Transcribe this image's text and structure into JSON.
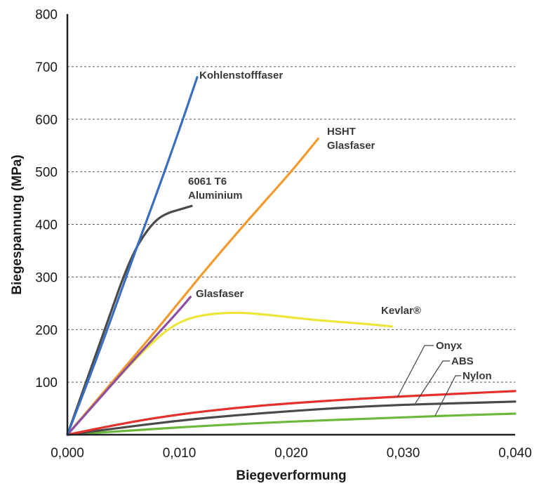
{
  "chart_data": {
    "type": "line",
    "xlabel": "Biegeverformung",
    "ylabel": "Biegespannung (MPa)",
    "xlim": [
      0,
      0.04
    ],
    "ylim": [
      0,
      800
    ],
    "x_ticks": [
      "0,000",
      "0,010",
      "0,020",
      "0,030",
      "0,040"
    ],
    "y_ticks": [
      "100",
      "200",
      "300",
      "400",
      "500",
      "600",
      "700",
      "800"
    ],
    "grid": "horizontal dashed",
    "series": [
      {
        "name": "Kohlenstofffaser",
        "color": "#3a6fbd",
        "x": [
          0,
          0.002,
          0.004,
          0.006,
          0.008,
          0.01,
          0.0116
        ],
        "y": [
          0,
          110,
          225,
          345,
          460,
          580,
          680
        ]
      },
      {
        "name": "HSHT Glasfaser",
        "color": "#f29a2e",
        "x": [
          0,
          0.004,
          0.008,
          0.012,
          0.016,
          0.02,
          0.0224
        ],
        "y": [
          0,
          100,
          200,
          305,
          405,
          500,
          563
        ]
      },
      {
        "name": "6061 T6 Aluminium",
        "color": "#4a4a4a",
        "x": [
          0,
          0.002,
          0.004,
          0.005,
          0.006,
          0.007,
          0.008,
          0.009,
          0.01,
          0.0111
        ],
        "y": [
          0,
          120,
          240,
          300,
          350,
          385,
          410,
          422,
          428,
          435
        ]
      },
      {
        "name": "Glasfaser",
        "color": "#8c4fa3",
        "x": [
          0,
          0.002,
          0.004,
          0.006,
          0.008,
          0.01,
          0.011
        ],
        "y": [
          0,
          48,
          96,
          144,
          190,
          237,
          262
        ]
      },
      {
        "name": "Kevlar®",
        "color": "#ece63a",
        "x": [
          0,
          0.004,
          0.008,
          0.01,
          0.012,
          0.015,
          0.018,
          0.022,
          0.026,
          0.029
        ],
        "y": [
          0,
          98,
          185,
          215,
          228,
          233,
          228,
          218,
          212,
          206
        ]
      },
      {
        "name": "Onyx",
        "color": "#e5312e",
        "x": [
          0,
          0.005,
          0.01,
          0.015,
          0.02,
          0.025,
          0.03,
          0.035,
          0.04
        ],
        "y": [
          0,
          22,
          39,
          51,
          60,
          67,
          73,
          78,
          83
        ]
      },
      {
        "name": "ABS",
        "color": "#4a4a4a",
        "x": [
          0,
          0.005,
          0.01,
          0.015,
          0.02,
          0.025,
          0.03,
          0.035,
          0.04
        ],
        "y": [
          0,
          14,
          27,
          37,
          45,
          52,
          57,
          60,
          63
        ]
      },
      {
        "name": "Nylon",
        "color": "#6cb83a",
        "x": [
          0,
          0.005,
          0.01,
          0.015,
          0.02,
          0.025,
          0.03,
          0.035,
          0.04
        ],
        "y": [
          0,
          7,
          14,
          20,
          25,
          29,
          33,
          37,
          40
        ]
      }
    ],
    "labels": {
      "carbon": "Kohlenstofffaser",
      "hsht_1": "HSHT",
      "hsht_2": "Glasfaser",
      "alu_1": "6061 T6",
      "alu_2": "Aluminium",
      "glass": "Glasfaser",
      "kevlar": "Kevlar®",
      "onyx": "Onyx",
      "abs": "ABS",
      "nylon": "Nylon"
    }
  }
}
